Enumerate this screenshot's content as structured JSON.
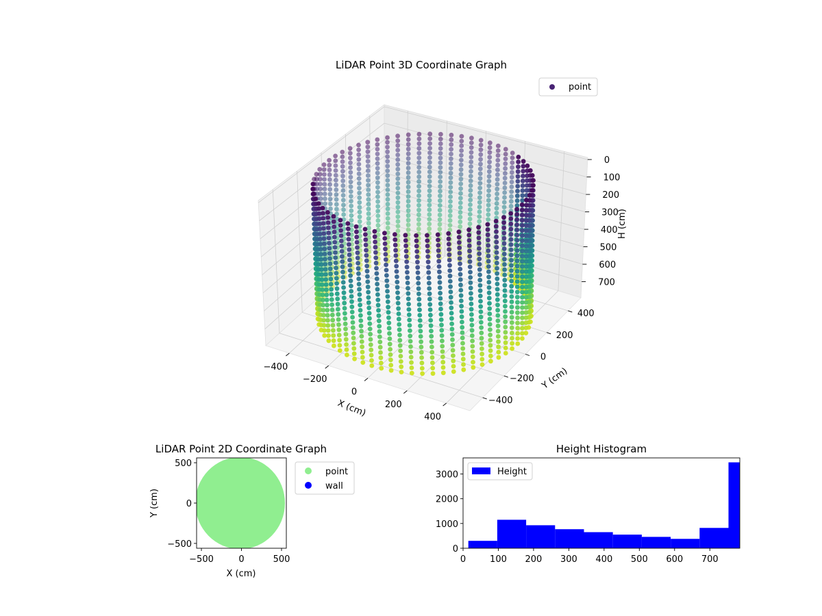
{
  "chart_data": [
    {
      "type": "scatter3d",
      "title": "LiDAR Point 3D Coordinate Graph",
      "xlabel": "X (cm)",
      "ylabel": "Y (cm)",
      "zlabel": "H (cm)",
      "x_ticks": [
        -400,
        -200,
        0,
        200,
        400
      ],
      "y_ticks": [
        -400,
        -200,
        0,
        200,
        400
      ],
      "z_ticks": [
        0,
        100,
        200,
        300,
        400,
        500,
        600,
        700
      ],
      "x_tick_labels": [
        "−400",
        "−200",
        "0",
        "200",
        "400"
      ],
      "y_tick_labels": [
        "−400",
        "−200",
        "0",
        "200",
        "400"
      ],
      "xlim": [
        -520,
        520
      ],
      "ylim": [
        -520,
        520
      ],
      "zlim": [
        780,
        0
      ],
      "z_inverted": true,
      "radius": 480,
      "legend": {
        "label": "point",
        "color": "#482374",
        "loc": "upper right"
      },
      "colormap": "viridis",
      "grid": true
    },
    {
      "type": "scatter",
      "title": "LiDAR Point 2D Coordinate Graph",
      "xlabel": "X (cm)",
      "ylabel": "Y (cm)",
      "xlim": [
        -560,
        560
      ],
      "ylim": [
        -560,
        560
      ],
      "x_ticks": [
        -500,
        0,
        500
      ],
      "y_ticks": [
        -500,
        0,
        500
      ],
      "x_tick_labels": [
        "−500",
        "0",
        "500"
      ],
      "y_tick_labels": [
        "−500",
        "0",
        "500"
      ],
      "series": [
        {
          "name": "point",
          "color": "#90ee90",
          "shape": "filled disk",
          "center": [
            0,
            0
          ],
          "radius": 560
        },
        {
          "name": "wall",
          "color": "#0000ff",
          "points": []
        }
      ],
      "legend_loc": "outside right"
    },
    {
      "type": "bar",
      "title": "Height Histogram",
      "xlabel": "",
      "ylabel": "",
      "legend": {
        "label": "Height",
        "color": "#0000ff"
      },
      "bins": [
        {
          "x0": 15,
          "x1": 97,
          "count": 300
        },
        {
          "x0": 97,
          "x1": 179,
          "count": 1150
        },
        {
          "x0": 179,
          "x1": 261,
          "count": 930
        },
        {
          "x0": 261,
          "x1": 343,
          "count": 770
        },
        {
          "x0": 343,
          "x1": 425,
          "count": 650
        },
        {
          "x0": 425,
          "x1": 507,
          "count": 550
        },
        {
          "x0": 507,
          "x1": 589,
          "count": 460
        },
        {
          "x0": 589,
          "x1": 671,
          "count": 380
        },
        {
          "x0": 671,
          "x1": 753,
          "count": 820
        },
        {
          "x0": 753,
          "x1": 785,
          "count": 3470
        }
      ],
      "xlim": [
        0,
        785
      ],
      "ylim": [
        0,
        3650
      ],
      "x_ticks": [
        0,
        100,
        200,
        300,
        400,
        500,
        600,
        700
      ],
      "y_ticks": [
        0,
        1000,
        2000,
        3000
      ]
    }
  ]
}
